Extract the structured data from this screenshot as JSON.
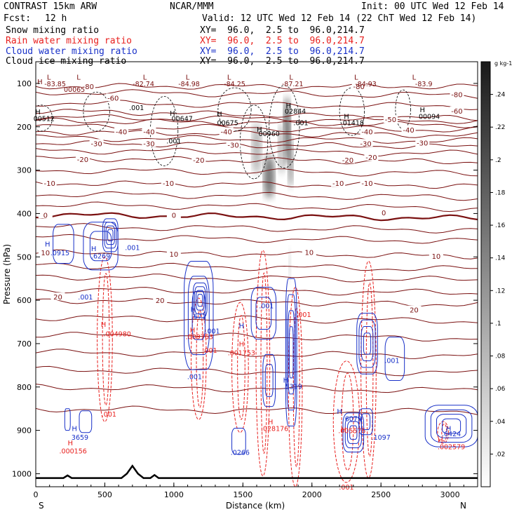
{
  "header": {
    "model": "CONTRAST 15km ARW",
    "org": "NCAR/MMM",
    "init": "Init: 00 UTC Wed 12 Feb 14",
    "fcst_label": "Fcst:",
    "fcst_value": "12 h",
    "valid": "Valid: 12 UTC Wed 12 Feb 14 (22 ChT Wed 12 Feb 14)",
    "fields": [
      {
        "name": "Snow mixing ratio",
        "color": "#000000",
        "xy": "XY=  96.0,  2.5 to  96.0,214.7"
      },
      {
        "name": "Rain water mixing ratio",
        "color": "#e8201e",
        "xy": "XY=  96.0,  2.5 to  96.0,214.7"
      },
      {
        "name": "Cloud water mixing ratio",
        "color": "#1830c8",
        "xy": "XY=  96.0,  2.5 to  96.0,214.7"
      },
      {
        "name": "Cloud ice mixing ratio",
        "color": "#000000",
        "xy": "XY=  96.0,  2.5 to  96.0,214.7"
      }
    ]
  },
  "chart_data": {
    "type": "heatmap",
    "xlabel": "Distance (km)",
    "ylabel": "Pressure (hPa)",
    "x_ticks": [
      0,
      500,
      1000,
      1500,
      2000,
      2500,
      3000
    ],
    "y_ticks": [
      100,
      200,
      300,
      400,
      500,
      600,
      700,
      800,
      900,
      1000
    ],
    "xlim": [
      0,
      3200
    ],
    "ylim": [
      1030,
      50
    ],
    "left_end_label": "S",
    "right_end_label": "N",
    "colorbar": {
      "unit": "g kg-1",
      "ticks": [
        ".02",
        ".04",
        ".06",
        ".08",
        ".1",
        ".12",
        ".14",
        ".16",
        ".18",
        ".2",
        ".22",
        ".24"
      ],
      "tick_values": [
        0.02,
        0.04,
        0.06,
        0.08,
        0.1,
        0.12,
        0.14,
        0.16,
        0.18,
        0.2,
        0.22,
        0.24
      ],
      "max": 0.26
    },
    "colors": {
      "temperature": "#7a1010",
      "rain": "#e8201e",
      "cloud": "#1830c8",
      "ice": "#000000"
    },
    "temperature_contours": [
      {
        "label": "-80",
        "p": 107,
        "tilt": 0
      },
      {
        "label": "-60",
        "p": 163,
        "tilt": 18
      },
      {
        "label": "-50",
        "p": 186,
        "tilt": 10
      },
      {
        "label": "-40",
        "p": 212,
        "tilt": 8
      },
      {
        "label": "-30",
        "p": 238,
        "tilt": 8
      },
      {
        "label": "-20",
        "p": 273,
        "tilt": 8
      },
      {
        "label": "-10",
        "p": 330,
        "tilt": 6
      },
      {
        "label": "0",
        "p": 403,
        "tilt": 8
      },
      {
        "label": "10",
        "p": 490,
        "tilt": 8
      },
      {
        "label": "20",
        "p": 600,
        "tilt": 10
      }
    ],
    "temperature_labels": [
      {
        "text": "-80",
        "x": 380,
        "p": 107
      },
      {
        "text": "-80",
        "x": 2340,
        "p": 107
      },
      {
        "text": "-80",
        "x": 3050,
        "p": 125
      },
      {
        "text": "-60",
        "x": 560,
        "p": 133
      },
      {
        "text": "-60",
        "x": 3050,
        "p": 163
      },
      {
        "text": "-50",
        "x": 2570,
        "p": 183
      },
      {
        "text": "-40",
        "x": 620,
        "p": 211
      },
      {
        "text": "-40",
        "x": 820,
        "p": 211
      },
      {
        "text": "-40",
        "x": 1380,
        "p": 211
      },
      {
        "text": "-40",
        "x": 2400,
        "p": 211
      },
      {
        "text": "-40",
        "x": 2700,
        "p": 207
      },
      {
        "text": "-30",
        "x": 440,
        "p": 238
      },
      {
        "text": "-30",
        "x": 820,
        "p": 238
      },
      {
        "text": "-30",
        "x": 1430,
        "p": 242
      },
      {
        "text": "-30",
        "x": 2390,
        "p": 238
      },
      {
        "text": "-30",
        "x": 2800,
        "p": 237
      },
      {
        "text": "-20",
        "x": 340,
        "p": 275
      },
      {
        "text": "-20",
        "x": 1180,
        "p": 276
      },
      {
        "text": "-20",
        "x": 2260,
        "p": 276
      },
      {
        "text": "-20",
        "x": 2430,
        "p": 270
      },
      {
        "text": "-10",
        "x": 100,
        "p": 330
      },
      {
        "text": "-10",
        "x": 960,
        "p": 330
      },
      {
        "text": "-10",
        "x": 2190,
        "p": 330
      },
      {
        "text": "-10",
        "x": 2400,
        "p": 330
      },
      {
        "text": "0",
        "x": 70,
        "p": 403
      },
      {
        "text": "0",
        "x": 1000,
        "p": 403
      },
      {
        "text": "0",
        "x": 2520,
        "p": 398
      },
      {
        "text": "10",
        "x": 70,
        "p": 490
      },
      {
        "text": "10",
        "x": 1000,
        "p": 493
      },
      {
        "text": "10",
        "x": 1980,
        "p": 489
      },
      {
        "text": "10",
        "x": 2900,
        "p": 498
      },
      {
        "text": "20",
        "x": 160,
        "p": 592
      },
      {
        "text": "20",
        "x": 900,
        "p": 600
      },
      {
        "text": "20",
        "x": 2740,
        "p": 622
      }
    ],
    "highs": [
      {
        "text": "H",
        "x": 30,
        "p": 95,
        "color": "#7a1010"
      },
      {
        "text": "H",
        "x": 15,
        "p": 165,
        "color": "#000000"
      },
      {
        "text": "H",
        "x": 990,
        "p": 168,
        "color": "#000000"
      },
      {
        "text": "H",
        "x": 1330,
        "p": 170,
        "color": "#000000"
      },
      {
        "text": "H",
        "x": 1620,
        "p": 205,
        "color": "#000000"
      },
      {
        "text": "H",
        "x": 1830,
        "p": 150,
        "color": "#000000"
      },
      {
        "text": "H",
        "x": 2250,
        "p": 175,
        "color": "#000000"
      },
      {
        "text": "H",
        "x": 2800,
        "p": 160,
        "color": "#000000"
      },
      {
        "text": "H",
        "x": 85,
        "p": 470,
        "color": "#1830c8"
      },
      {
        "text": "H",
        "x": 420,
        "p": 480,
        "color": "#1830c8"
      },
      {
        "text": "H",
        "x": 1140,
        "p": 620,
        "color": "#1830c8"
      },
      {
        "text": "H",
        "x": 1490,
        "p": 658,
        "color": "#1830c8"
      },
      {
        "text": "H",
        "x": 1810,
        "p": 783,
        "color": "#1830c8"
      },
      {
        "text": "H",
        "x": 2200,
        "p": 855,
        "color": "#1830c8"
      },
      {
        "text": "H",
        "x": 2990,
        "p": 895,
        "color": "#1830c8"
      },
      {
        "text": "H",
        "x": 280,
        "p": 895,
        "color": "#1830c8"
      },
      {
        "text": "H",
        "x": 490,
        "p": 655,
        "color": "#e8201e"
      },
      {
        "text": "H",
        "x": 1135,
        "p": 668,
        "color": "#e8201e"
      },
      {
        "text": "H",
        "x": 1490,
        "p": 700,
        "color": "#e8201e"
      },
      {
        "text": "H",
        "x": 1700,
        "p": 880,
        "color": "#e8201e"
      },
      {
        "text": "H",
        "x": 2230,
        "p": 897,
        "color": "#e8201e"
      },
      {
        "text": "H",
        "x": 2930,
        "p": 922,
        "color": "#e8201e"
      },
      {
        "text": "H",
        "x": 250,
        "p": 928,
        "color": "#e8201e"
      }
    ],
    "lows": [
      {
        "text": "L",
        "x": 95,
        "p": 85
      },
      {
        "text": "L",
        "x": 310,
        "p": 85
      },
      {
        "text": "L",
        "x": 790,
        "p": 85
      },
      {
        "text": "L",
        "x": 1100,
        "p": 85
      },
      {
        "text": "L",
        "x": 1400,
        "p": 85
      },
      {
        "text": "L",
        "x": 1850,
        "p": 85
      },
      {
        "text": "L",
        "x": 2320,
        "p": 85
      },
      {
        "text": "L",
        "x": 2740,
        "p": 85
      }
    ],
    "value_labels": [
      {
        "text": "-83.85",
        "x": 140,
        "p": 100,
        "color": "#7a1010"
      },
      {
        "text": "00065",
        "x": 280,
        "p": 113,
        "color": "#7a1010"
      },
      {
        "text": "-82.74",
        "x": 780,
        "p": 100,
        "color": "#7a1010"
      },
      {
        "text": "-84.98",
        "x": 1110,
        "p": 100,
        "color": "#7a1010"
      },
      {
        "text": "-84.25",
        "x": 1440,
        "p": 100,
        "color": "#7a1010"
      },
      {
        "text": "-87.21",
        "x": 1860,
        "p": 100,
        "color": "#7a1010"
      },
      {
        "text": "-84.93",
        "x": 2390,
        "p": 100,
        "color": "#7a1010"
      },
      {
        "text": "-83.9",
        "x": 2810,
        "p": 100,
        "color": "#7a1010"
      },
      {
        "text": ".001",
        "x": 730,
        "p": 155,
        "color": "#000000"
      },
      {
        "text": "00512",
        "x": 60,
        "p": 180,
        "color": "#000000"
      },
      {
        "text": "00647",
        "x": 1060,
        "p": 180,
        "color": "#000000"
      },
      {
        "text": "00675",
        "x": 1390,
        "p": 190,
        "color": "#000000"
      },
      {
        "text": "00960",
        "x": 1690,
        "p": 215,
        "color": "#000000"
      },
      {
        "text": "02844",
        "x": 1880,
        "p": 163,
        "color": "#000000"
      },
      {
        "text": ".001",
        "x": 1920,
        "p": 190,
        "color": "#000000"
      },
      {
        "text": "01418",
        "x": 2300,
        "p": 190,
        "color": "#000000"
      },
      {
        "text": "00094",
        "x": 2850,
        "p": 175,
        "color": "#000000"
      },
      {
        "text": ".001",
        "x": 1000,
        "p": 232,
        "color": "#000000"
      },
      {
        "text": ".0915",
        "x": 175,
        "p": 490,
        "color": "#1830c8"
      },
      {
        "text": ".6269",
        "x": 470,
        "p": 497,
        "color": "#1830c8"
      },
      {
        "text": ".001",
        "x": 700,
        "p": 478,
        "color": "#1830c8"
      },
      {
        "text": ".001",
        "x": 360,
        "p": 592,
        "color": "#1830c8"
      },
      {
        "text": ".671",
        "x": 1180,
        "p": 636,
        "color": "#1830c8"
      },
      {
        "text": ".001",
        "x": 1280,
        "p": 670,
        "color": "#1830c8"
      },
      {
        "text": ".001",
        "x": 1670,
        "p": 612,
        "color": "#1830c8"
      },
      {
        "text": ".001",
        "x": 1150,
        "p": 775,
        "color": "#1830c8"
      },
      {
        "text": ".5319",
        "x": 1860,
        "p": 798,
        "color": "#1830c8"
      },
      {
        "text": "6079",
        "x": 2300,
        "p": 872,
        "color": "#1830c8"
      },
      {
        "text": ".001",
        "x": 2580,
        "p": 738,
        "color": "#1830c8"
      },
      {
        "text": ".1097",
        "x": 2500,
        "p": 915,
        "color": "#1830c8"
      },
      {
        "text": ".6424",
        "x": 3010,
        "p": 907,
        "color": "#1830c8"
      },
      {
        "text": "3659",
        "x": 320,
        "p": 915,
        "color": "#1830c8"
      },
      {
        "text": ".0266",
        "x": 1480,
        "p": 950,
        "color": "#1830c8"
      },
      {
        "text": ".004980",
        "x": 590,
        "p": 677,
        "color": "#e8201e"
      },
      {
        "text": ".009763",
        "x": 1185,
        "p": 683,
        "color": "#e8201e"
      },
      {
        "text": ".001",
        "x": 1260,
        "p": 715,
        "color": "#e8201e"
      },
      {
        "text": ".001753",
        "x": 1490,
        "p": 720,
        "color": "#e8201e"
      },
      {
        "text": ".001",
        "x": 1940,
        "p": 632,
        "color": "#e8201e"
      },
      {
        "text": ".028176",
        "x": 1730,
        "p": 895,
        "color": "#e8201e"
      },
      {
        "text": ".005575",
        "x": 2290,
        "p": 900,
        "color": "#e8201e"
      },
      {
        "text": ".002579",
        "x": 3010,
        "p": 937,
        "color": "#e8201e"
      },
      {
        "text": ".000156",
        "x": 270,
        "p": 947,
        "color": "#e8201e"
      },
      {
        "text": ".001",
        "x": 530,
        "p": 862,
        "color": "#e8201e"
      },
      {
        "text": ".001",
        "x": 2250,
        "p": 1030,
        "color": "#e8201e"
      }
    ],
    "grey_blobs": [
      {
        "x": 1600,
        "p": 250,
        "rx": 35,
        "rp": 60,
        "v": 0.1
      },
      {
        "x": 1690,
        "p": 315,
        "rx": 40,
        "rp": 50,
        "v": 0.18
      },
      {
        "x": 1820,
        "p": 210,
        "rx": 25,
        "rp": 80,
        "v": 0.22
      },
      {
        "x": 1845,
        "p": 280,
        "rx": 20,
        "rp": 60,
        "v": 0.16
      },
      {
        "x": 1780,
        "p": 250,
        "rx": 25,
        "rp": 60,
        "v": 0.1
      },
      {
        "x": 1840,
        "p": 520,
        "rx": 8,
        "rp": 40,
        "v": 0.08
      }
    ],
    "ice_contours": [
      {
        "x": 440,
        "p": 165,
        "rx": 95,
        "rp": 45
      },
      {
        "x": 930,
        "p": 210,
        "rx": 100,
        "rp": 80
      },
      {
        "x": 1440,
        "p": 160,
        "rx": 120,
        "rp": 50
      },
      {
        "x": 1580,
        "p": 235,
        "rx": 100,
        "rp": 85
      },
      {
        "x": 1800,
        "p": 200,
        "rx": 110,
        "rp": 95
      },
      {
        "x": 2290,
        "p": 165,
        "rx": 90,
        "rp": 55
      },
      {
        "x": 2660,
        "p": 160,
        "rx": 55,
        "rp": 45
      },
      {
        "x": 40,
        "p": 180,
        "rx": 80,
        "rp": 30
      }
    ],
    "cloud_cells": [
      {
        "x": 200,
        "p": 470,
        "rx": 75,
        "rp": 45,
        "n": 1
      },
      {
        "x": 470,
        "p": 475,
        "rx": 125,
        "rp": 55,
        "n": 2
      },
      {
        "x": 540,
        "p": 450,
        "rx": 55,
        "rp": 38,
        "n": 4
      },
      {
        "x": 1180,
        "p": 635,
        "rx": 105,
        "rp": 125,
        "n": 3
      },
      {
        "x": 1190,
        "p": 600,
        "rx": 50,
        "rp": 40,
        "n": 4
      },
      {
        "x": 1650,
        "p": 630,
        "rx": 90,
        "rp": 60,
        "n": 2
      },
      {
        "x": 1690,
        "p": 785,
        "rx": 45,
        "rp": 60,
        "n": 2
      },
      {
        "x": 1850,
        "p": 720,
        "rx": 40,
        "rp": 170,
        "n": 4
      },
      {
        "x": 2400,
        "p": 700,
        "rx": 75,
        "rp": 70,
        "n": 4
      },
      {
        "x": 2600,
        "p": 735,
        "rx": 70,
        "rp": 50,
        "n": 1
      },
      {
        "x": 2300,
        "p": 905,
        "rx": 75,
        "rp": 45,
        "n": 4
      },
      {
        "x": 2390,
        "p": 880,
        "rx": 50,
        "rp": 30,
        "n": 2
      },
      {
        "x": 3010,
        "p": 890,
        "rx": 190,
        "rp": 48,
        "n": 4
      },
      {
        "x": 230,
        "p": 875,
        "rx": 20,
        "rp": 25,
        "n": 1
      },
      {
        "x": 360,
        "p": 880,
        "rx": 45,
        "rp": 25,
        "n": 1
      },
      {
        "x": 1470,
        "p": 925,
        "rx": 50,
        "rp": 30,
        "n": 1
      }
    ],
    "rain_cells": [
      {
        "x": 500,
        "p": 690,
        "rx": 55,
        "rp": 190
      },
      {
        "x": 1180,
        "p": 735,
        "rx": 55,
        "rp": 140
      },
      {
        "x": 1480,
        "p": 755,
        "rx": 60,
        "rp": 150
      },
      {
        "x": 1645,
        "p": 745,
        "rx": 50,
        "rp": 260
      },
      {
        "x": 1880,
        "p": 800,
        "rx": 50,
        "rp": 230
      },
      {
        "x": 2410,
        "p": 760,
        "rx": 55,
        "rp": 250
      },
      {
        "x": 2250,
        "p": 880,
        "rx": 95,
        "rp": 140
      },
      {
        "x": 2950,
        "p": 905,
        "rx": 40,
        "rp": 25
      }
    ],
    "terrain": [
      [
        0,
        1010
      ],
      [
        200,
        1010
      ],
      [
        230,
        1004
      ],
      [
        260,
        1010
      ],
      [
        620,
        1010
      ],
      [
        660,
        1000
      ],
      [
        700,
        982
      ],
      [
        740,
        1000
      ],
      [
        780,
        1010
      ],
      [
        830,
        1010
      ],
      [
        860,
        1003
      ],
      [
        890,
        1010
      ],
      [
        3200,
        1010
      ]
    ]
  }
}
